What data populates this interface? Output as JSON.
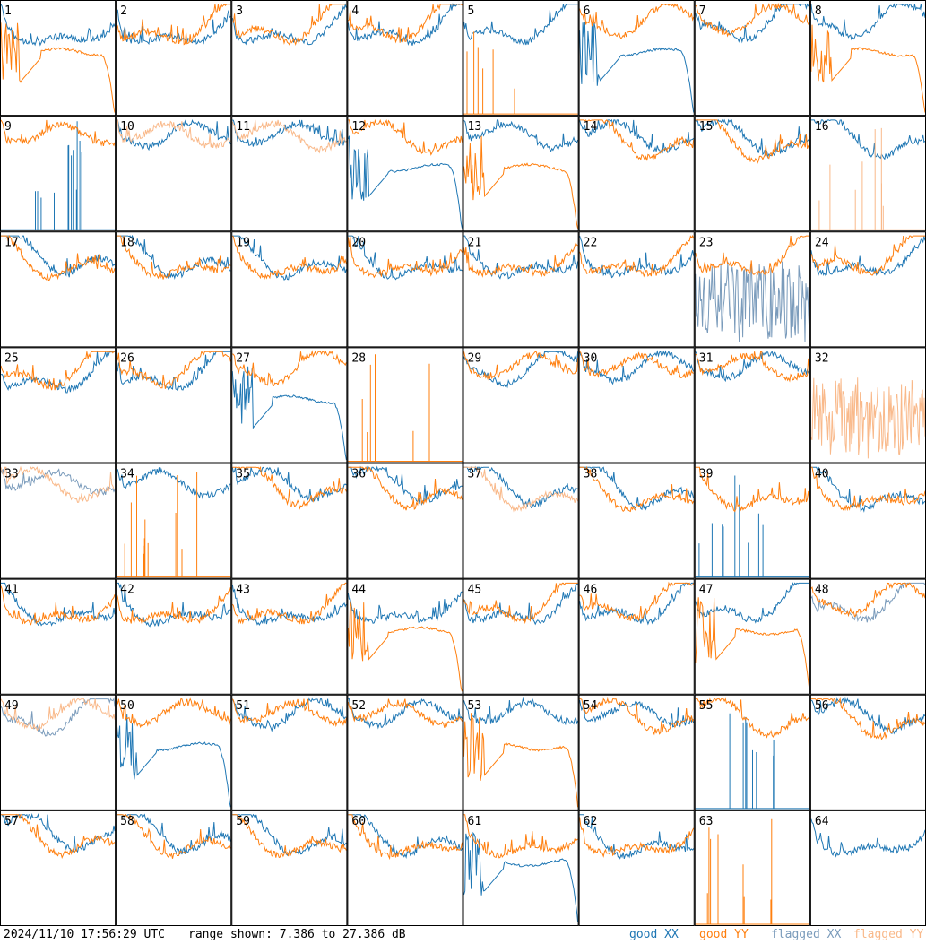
{
  "footer": {
    "timestamp": "2024/11/10 17:56:29 UTC",
    "range_text": "range shown: 7.386 to 27.386 dB"
  },
  "legend": [
    {
      "label": "good XX",
      "color": "#1f77b4"
    },
    {
      "label": "good YY",
      "color": "#ff7f0e"
    },
    {
      "label": "flagged XX",
      "color": "#7a9bbb"
    },
    {
      "label": "flagged YY",
      "color": "#f9b98a"
    }
  ],
  "chart_data": {
    "type": "line",
    "layout": "8x8 small multiples",
    "ylim": [
      7.386,
      27.386
    ],
    "y_unit": "dB",
    "series_names": [
      "good XX",
      "good YY",
      "flagged XX",
      "flagged YY"
    ],
    "panels": [
      {
        "id": "1",
        "xx": "typical",
        "yy": "rolloff"
      },
      {
        "id": "2",
        "xx": "typical",
        "yy": "typical"
      },
      {
        "id": "3",
        "xx": "typical",
        "yy": "typical"
      },
      {
        "id": "4",
        "xx": "typical",
        "yy": "typical"
      },
      {
        "id": "5",
        "xx": "typical",
        "yy": "spikes"
      },
      {
        "id": "6",
        "xx": "rolloff",
        "yy": "typical"
      },
      {
        "id": "7",
        "xx": "typical",
        "yy": "typical"
      },
      {
        "id": "8",
        "xx": "typical",
        "yy": "rolloff"
      },
      {
        "id": "9",
        "xx": "spikes",
        "yy": "typical"
      },
      {
        "id": "10",
        "xx": "typical",
        "yy": "flagged"
      },
      {
        "id": "11",
        "xx": "typical",
        "yy": "flagged"
      },
      {
        "id": "12",
        "xx": "rolloff",
        "yy": "typical"
      },
      {
        "id": "13",
        "xx": "typical",
        "yy": "rolloff"
      },
      {
        "id": "14",
        "xx": "typical",
        "yy": "typical"
      },
      {
        "id": "15",
        "xx": "typical",
        "yy": "typical"
      },
      {
        "id": "16",
        "xx": "typical",
        "yy": "spikes-flagged"
      },
      {
        "id": "17",
        "xx": "typical",
        "yy": "typical"
      },
      {
        "id": "18",
        "xx": "typical",
        "yy": "typical"
      },
      {
        "id": "19",
        "xx": "typical",
        "yy": "typical"
      },
      {
        "id": "20",
        "xx": "typical",
        "yy": "typical"
      },
      {
        "id": "21",
        "xx": "typical",
        "yy": "typical"
      },
      {
        "id": "22",
        "xx": "typical",
        "yy": "typical"
      },
      {
        "id": "23",
        "xx": "noisy-flagged",
        "yy": "typical"
      },
      {
        "id": "24",
        "xx": "typical",
        "yy": "typical"
      },
      {
        "id": "25",
        "xx": "typical",
        "yy": "typical"
      },
      {
        "id": "26",
        "xx": "typical",
        "yy": "typical"
      },
      {
        "id": "27",
        "xx": "rolloff",
        "yy": "typical"
      },
      {
        "id": "28",
        "xx": "none",
        "yy": "spikes"
      },
      {
        "id": "29",
        "xx": "typical",
        "yy": "typical"
      },
      {
        "id": "30",
        "xx": "typical",
        "yy": "typical"
      },
      {
        "id": "31",
        "xx": "typical",
        "yy": "typical"
      },
      {
        "id": "32",
        "xx": "none",
        "yy": "noisy-flagged"
      },
      {
        "id": "33",
        "xx": "flagged",
        "yy": "flagged"
      },
      {
        "id": "34",
        "xx": "typical",
        "yy": "spikes"
      },
      {
        "id": "35",
        "xx": "typical",
        "yy": "typical"
      },
      {
        "id": "36",
        "xx": "typical",
        "yy": "typical"
      },
      {
        "id": "37",
        "xx": "typical",
        "yy": "flagged"
      },
      {
        "id": "38",
        "xx": "typical",
        "yy": "typical"
      },
      {
        "id": "39",
        "xx": "spikes",
        "yy": "typical"
      },
      {
        "id": "40",
        "xx": "typical",
        "yy": "typical"
      },
      {
        "id": "41",
        "xx": "typical",
        "yy": "typical"
      },
      {
        "id": "42",
        "xx": "typical",
        "yy": "typical"
      },
      {
        "id": "43",
        "xx": "typical",
        "yy": "typical"
      },
      {
        "id": "44",
        "xx": "typical",
        "yy": "rolloff"
      },
      {
        "id": "45",
        "xx": "typical",
        "yy": "typical"
      },
      {
        "id": "46",
        "xx": "typical",
        "yy": "typical"
      },
      {
        "id": "47",
        "xx": "typical",
        "yy": "rolloff"
      },
      {
        "id": "48",
        "xx": "flagged",
        "yy": "typical"
      },
      {
        "id": "49",
        "xx": "flagged",
        "yy": "flagged"
      },
      {
        "id": "50",
        "xx": "rolloff",
        "yy": "typical"
      },
      {
        "id": "51",
        "xx": "typical",
        "yy": "typical"
      },
      {
        "id": "52",
        "xx": "typical",
        "yy": "typical"
      },
      {
        "id": "53",
        "xx": "typical",
        "yy": "rolloff"
      },
      {
        "id": "54",
        "xx": "typical",
        "yy": "typical"
      },
      {
        "id": "55",
        "xx": "spikes",
        "yy": "typical"
      },
      {
        "id": "56",
        "xx": "typical",
        "yy": "typical"
      },
      {
        "id": "57",
        "xx": "typical",
        "yy": "typical"
      },
      {
        "id": "58",
        "xx": "typical",
        "yy": "typical"
      },
      {
        "id": "59",
        "xx": "typical",
        "yy": "typical"
      },
      {
        "id": "60",
        "xx": "typical",
        "yy": "typical"
      },
      {
        "id": "61",
        "xx": "rolloff",
        "yy": "typical"
      },
      {
        "id": "62",
        "xx": "typical",
        "yy": "typical"
      },
      {
        "id": "63",
        "xx": "none",
        "yy": "spikes"
      },
      {
        "id": "64",
        "xx": "typical",
        "yy": "none"
      }
    ]
  }
}
